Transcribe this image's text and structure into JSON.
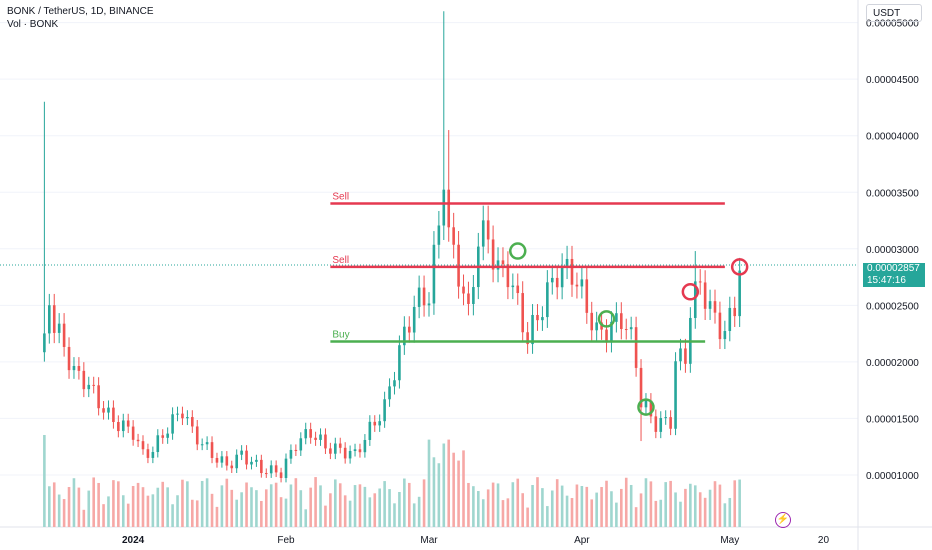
{
  "header": {
    "title": "BONK / TetherUS, 1D, BINANCE",
    "volume_label": "Vol · BONK"
  },
  "currency_button": "USDT",
  "price_label": {
    "price": "0.00002857",
    "countdown": "15:47:16"
  },
  "colors": {
    "up": "#26a69a",
    "down": "#ef5350",
    "sell_line": "#e53950",
    "buy_line": "#4caf50",
    "vol_up": "#9fd6cf",
    "vol_down": "#f6a8a6"
  },
  "chart_data": {
    "type": "candlestick",
    "title": "BONK / TetherUS, 1D, BINANCE",
    "y_ticks": [
      "0.00005000",
      "0.00004500",
      "0.00004000",
      "0.00003500",
      "0.00003000",
      "0.00002500",
      "0.00002000",
      "0.00001500",
      "0.00001000"
    ],
    "x_ticks": [
      "2024",
      "Feb",
      "Mar",
      "Apr",
      "May",
      "20"
    ],
    "ylim": [
      5.4e-06,
      5.2e-05
    ],
    "xlim": [
      "2023-12-05",
      "2024-05-27"
    ],
    "last_price": 2.857e-05,
    "anchors": [
      [
        "2023-12-14",
        2.15e-05
      ],
      [
        "2023-12-15",
        2.58e-05
      ],
      [
        "2023-12-16",
        2.32e-05
      ],
      [
        "2023-12-18",
        2.14e-05
      ],
      [
        "2023-12-20",
        1.9e-05
      ],
      [
        "2023-12-22",
        1.85e-05
      ],
      [
        "2023-12-25",
        1.65e-05
      ],
      [
        "2023-12-27",
        1.52e-05
      ],
      [
        "2023-12-29",
        1.45e-05
      ],
      [
        "2024-01-01",
        1.38e-05
      ],
      [
        "2024-01-03",
        1.18e-05
      ],
      [
        "2024-01-05",
        1.22e-05
      ],
      [
        "2024-01-08",
        1.42e-05
      ],
      [
        "2024-01-11",
        1.58e-05
      ],
      [
        "2024-01-13",
        1.38e-05
      ],
      [
        "2024-01-17",
        1.18e-05
      ],
      [
        "2024-01-20",
        1.08e-05
      ],
      [
        "2024-01-23",
        1.18e-05
      ],
      [
        "2024-01-27",
        1.05e-05
      ],
      [
        "2024-01-31",
        1.02e-05
      ],
      [
        "2024-02-03",
        1.28e-05
      ],
      [
        "2024-02-06",
        1.38e-05
      ],
      [
        "2024-02-09",
        1.25e-05
      ],
      [
        "2024-02-12",
        1.22e-05
      ],
      [
        "2024-02-15",
        1.18e-05
      ],
      [
        "2024-02-18",
        1.4e-05
      ],
      [
        "2024-02-21",
        1.6e-05
      ],
      [
        "2024-02-24",
        2.1e-05
      ],
      [
        "2024-02-27",
        2.5e-05
      ],
      [
        "2024-03-01",
        2.6e-05
      ],
      [
        "2024-03-03",
        3.2e-05
      ],
      [
        "2024-03-04",
        3.7e-05
      ],
      [
        "2024-03-05",
        3.1e-05
      ],
      [
        "2024-03-07",
        2.8e-05
      ],
      [
        "2024-03-09",
        2.4e-05
      ],
      [
        "2024-03-11",
        3.1e-05
      ],
      [
        "2024-03-13",
        3.1e-05
      ],
      [
        "2024-03-15",
        2.8e-05
      ],
      [
        "2024-03-17",
        2.8e-05
      ],
      [
        "2024-03-19",
        2.5e-05
      ],
      [
        "2024-03-21",
        2.2e-05
      ],
      [
        "2024-03-24",
        2.5e-05
      ],
      [
        "2024-03-27",
        2.8e-05
      ],
      [
        "2024-03-30",
        2.8e-05
      ],
      [
        "2024-04-01",
        2.6e-05
      ],
      [
        "2024-04-04",
        2.25e-05
      ],
      [
        "2024-04-07",
        2.3e-05
      ],
      [
        "2024-04-09",
        2.4e-05
      ],
      [
        "2024-04-11",
        2.2e-05
      ],
      [
        "2024-04-12",
        2e-05
      ],
      [
        "2024-04-13",
        1.65e-05
      ],
      [
        "2024-04-16",
        1.45e-05
      ],
      [
        "2024-04-19",
        1.48e-05
      ],
      [
        "2024-04-20",
        2e-05
      ],
      [
        "2024-04-22",
        2.05e-05
      ],
      [
        "2024-04-23",
        2.45e-05
      ],
      [
        "2024-04-25",
        2.72e-05
      ],
      [
        "2024-04-27",
        2.45e-05
      ],
      [
        "2024-04-30",
        2.25e-05
      ],
      [
        "2024-05-02",
        2.5e-05
      ],
      [
        "2024-05-03",
        2.86e-05
      ]
    ],
    "spikes": [
      [
        "2023-12-14",
        4.3e-05
      ],
      [
        "2024-03-04",
        5.1e-05
      ],
      [
        "2024-03-05",
        4.05e-05
      ],
      [
        "2024-04-24",
        2.98e-05
      ],
      [
        "2024-04-13",
        1.3e-05
      ]
    ],
    "lines": [
      {
        "label": "Sell",
        "y": 3.4e-05,
        "from": "2024-02-10",
        "to": "2024-04-30",
        "color": "#e53950"
      },
      {
        "label": "Sell",
        "y": 2.84e-05,
        "from": "2024-02-10",
        "to": "2024-04-30",
        "color": "#e53950"
      },
      {
        "label": "Buy",
        "y": 2.18e-05,
        "from": "2024-02-10",
        "to": "2024-04-26",
        "color": "#4caf50"
      }
    ],
    "circles": [
      {
        "date": "2024-03-19",
        "y": 2.98e-05,
        "color": "#4caf50"
      },
      {
        "date": "2024-04-06",
        "y": 2.38e-05,
        "color": "#4caf50"
      },
      {
        "date": "2024-04-14",
        "y": 1.6e-05,
        "color": "#4caf50"
      },
      {
        "date": "2024-04-23",
        "y": 2.62e-05,
        "color": "#e53950"
      },
      {
        "date": "2024-05-03",
        "y": 2.84e-05,
        "color": "#e53950"
      }
    ]
  }
}
